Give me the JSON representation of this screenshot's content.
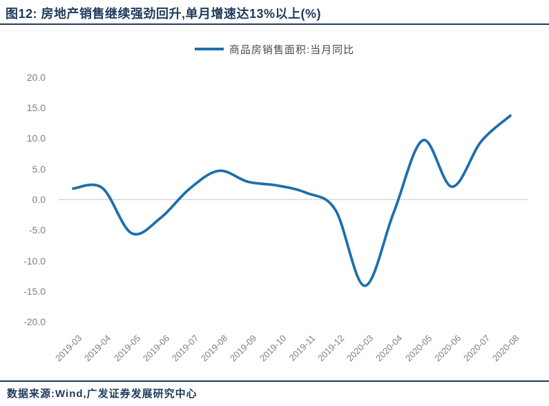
{
  "title": {
    "text": "图12: 房地产销售继续强劲回升,单月增速达13%以上(%)"
  },
  "legend": {
    "label": "商品房销售面积:当月同比"
  },
  "source": {
    "text": "数据来源:Wind,广发证券发展研究中心"
  },
  "colors": {
    "navy": "#1e3a5c",
    "line": "#1e6fad",
    "axis_text": "#7f7f7f",
    "gridline": "#d9d9d9",
    "legend_text": "#554741"
  },
  "chart_data": {
    "type": "line",
    "title": "图12: 房地产销售继续强劲回升,单月增速达13%以上(%)",
    "categories": [
      "2019-03",
      "2019-04",
      "2019-05",
      "2019-06",
      "2019-07",
      "2019-08",
      "2019-09",
      "2019-10",
      "2019-11",
      "2019-12",
      "2020-03",
      "2020-04",
      "2020-05",
      "2020-06",
      "2020-07",
      "2020-08"
    ],
    "series": [
      {
        "name": "商品房销售面积:当月同比",
        "values": [
          1.8,
          1.9,
          -5.5,
          -3.0,
          1.8,
          4.7,
          2.9,
          2.3,
          1.1,
          -1.7,
          -14.1,
          -2.1,
          9.7,
          2.1,
          9.5,
          13.7
        ]
      }
    ],
    "ylabel": "",
    "xlabel": "",
    "ylim": [
      -20,
      20
    ],
    "y_tick_labels": [
      "20.0",
      "15.0",
      "10.0",
      "5.0",
      "0.0",
      "-5.0",
      "-10.0",
      "-15.0",
      "-20.0"
    ],
    "grid": "zero-baseline-only",
    "legend_position": "top-center",
    "line_style": "smooth"
  }
}
